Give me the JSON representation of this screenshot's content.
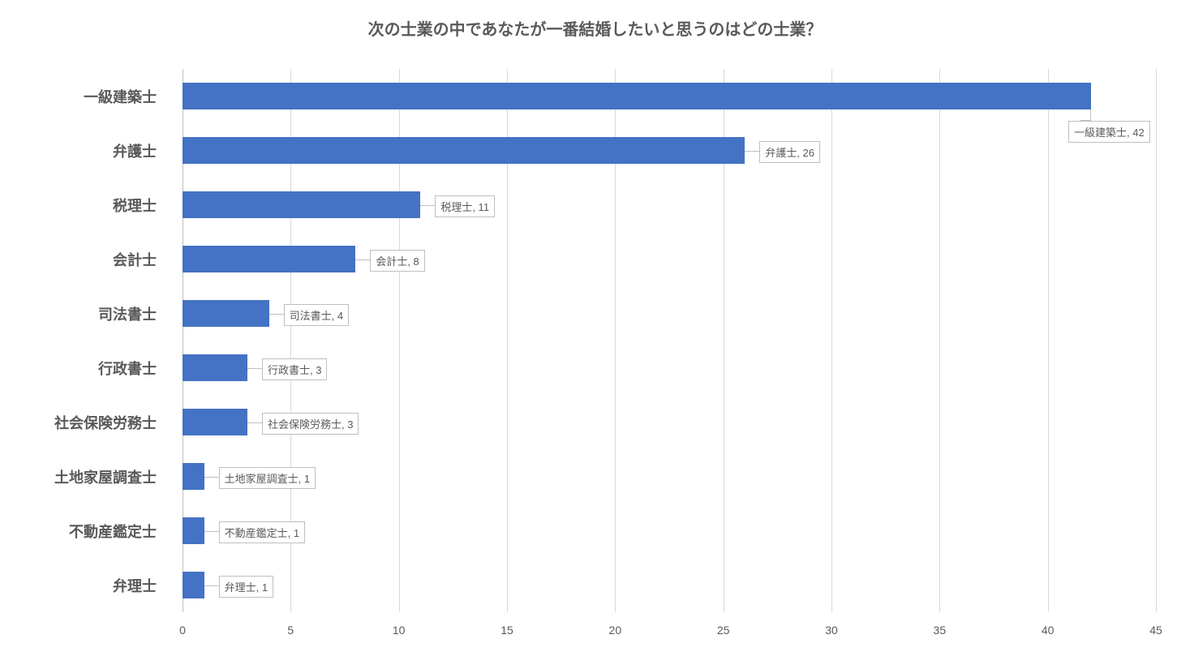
{
  "chart": {
    "type": "bar-horizontal",
    "title": "次の士業の中であなたが一番結婚したいと思うのはどの士業？",
    "title_fontsize": 20,
    "title_color": "#595959",
    "background_color": "#ffffff",
    "bar_color": "#4472c4",
    "grid_color": "#d9d9d9",
    "axis_color": "#bfbfbf",
    "label_color": "#595959",
    "ylabel_fontsize": 18,
    "xlabel_fontsize": 14,
    "data_label_fontsize": 13,
    "data_label_border": "#bfbfbf",
    "data_label_bg": "#ffffff",
    "xlim": [
      0,
      45
    ],
    "xtick_step": 5,
    "xticks": [
      0,
      5,
      10,
      15,
      20,
      25,
      30,
      35,
      40,
      45
    ],
    "bar_height_ratio": 0.5,
    "categories": [
      {
        "label": "一級建築士",
        "value": 42,
        "data_label": "一級建築士, 42",
        "callout": "below"
      },
      {
        "label": "弁護士",
        "value": 26,
        "data_label": "弁護士, 26",
        "callout": "right"
      },
      {
        "label": "税理士",
        "value": 11,
        "data_label": "税理士, 11",
        "callout": "right"
      },
      {
        "label": "会計士",
        "value": 8,
        "data_label": "会計士, 8",
        "callout": "right"
      },
      {
        "label": "司法書士",
        "value": 4,
        "data_label": "司法書士, 4",
        "callout": "right"
      },
      {
        "label": "行政書士",
        "value": 3,
        "data_label": "行政書士, 3",
        "callout": "right"
      },
      {
        "label": "社会保険労務士",
        "value": 3,
        "data_label": "社会保険労務士, 3",
        "callout": "right"
      },
      {
        "label": "土地家屋調査士",
        "value": 1,
        "data_label": "土地家屋調査士, 1",
        "callout": "right"
      },
      {
        "label": "不動産鑑定士",
        "value": 1,
        "data_label": "不動産鑑定士, 1",
        "callout": "right"
      },
      {
        "label": "弁理士",
        "value": 1,
        "data_label": "弁理士, 1",
        "callout": "right"
      }
    ]
  }
}
